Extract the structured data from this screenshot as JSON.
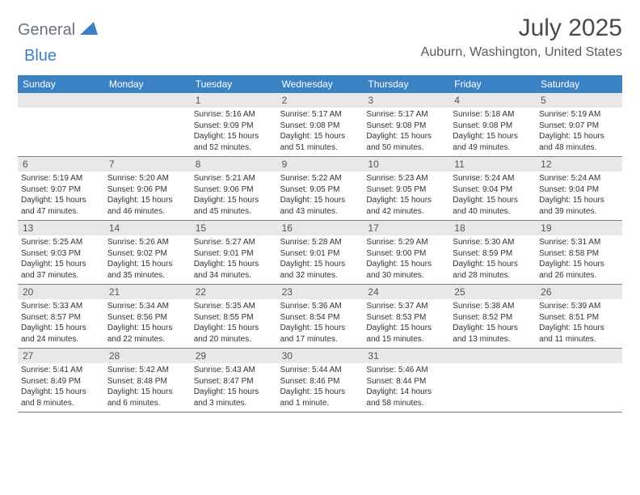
{
  "brand": {
    "part1": "General",
    "part2": "Blue"
  },
  "title": "July 2025",
  "location": "Auburn, Washington, United States",
  "colors": {
    "header_bg": "#3b82c4",
    "header_text": "#ffffff",
    "daynum_bg": "#e8e8e8",
    "border": "#808080",
    "text": "#333333"
  },
  "day_names": [
    "Sunday",
    "Monday",
    "Tuesday",
    "Wednesday",
    "Thursday",
    "Friday",
    "Saturday"
  ],
  "weeks": [
    [
      {
        "n": "",
        "sr": "",
        "ss": "",
        "dl": ""
      },
      {
        "n": "",
        "sr": "",
        "ss": "",
        "dl": ""
      },
      {
        "n": "1",
        "sr": "Sunrise: 5:16 AM",
        "ss": "Sunset: 9:09 PM",
        "dl": "Daylight: 15 hours and 52 minutes."
      },
      {
        "n": "2",
        "sr": "Sunrise: 5:17 AM",
        "ss": "Sunset: 9:08 PM",
        "dl": "Daylight: 15 hours and 51 minutes."
      },
      {
        "n": "3",
        "sr": "Sunrise: 5:17 AM",
        "ss": "Sunset: 9:08 PM",
        "dl": "Daylight: 15 hours and 50 minutes."
      },
      {
        "n": "4",
        "sr": "Sunrise: 5:18 AM",
        "ss": "Sunset: 9:08 PM",
        "dl": "Daylight: 15 hours and 49 minutes."
      },
      {
        "n": "5",
        "sr": "Sunrise: 5:19 AM",
        "ss": "Sunset: 9:07 PM",
        "dl": "Daylight: 15 hours and 48 minutes."
      }
    ],
    [
      {
        "n": "6",
        "sr": "Sunrise: 5:19 AM",
        "ss": "Sunset: 9:07 PM",
        "dl": "Daylight: 15 hours and 47 minutes."
      },
      {
        "n": "7",
        "sr": "Sunrise: 5:20 AM",
        "ss": "Sunset: 9:06 PM",
        "dl": "Daylight: 15 hours and 46 minutes."
      },
      {
        "n": "8",
        "sr": "Sunrise: 5:21 AM",
        "ss": "Sunset: 9:06 PM",
        "dl": "Daylight: 15 hours and 45 minutes."
      },
      {
        "n": "9",
        "sr": "Sunrise: 5:22 AM",
        "ss": "Sunset: 9:05 PM",
        "dl": "Daylight: 15 hours and 43 minutes."
      },
      {
        "n": "10",
        "sr": "Sunrise: 5:23 AM",
        "ss": "Sunset: 9:05 PM",
        "dl": "Daylight: 15 hours and 42 minutes."
      },
      {
        "n": "11",
        "sr": "Sunrise: 5:24 AM",
        "ss": "Sunset: 9:04 PM",
        "dl": "Daylight: 15 hours and 40 minutes."
      },
      {
        "n": "12",
        "sr": "Sunrise: 5:24 AM",
        "ss": "Sunset: 9:04 PM",
        "dl": "Daylight: 15 hours and 39 minutes."
      }
    ],
    [
      {
        "n": "13",
        "sr": "Sunrise: 5:25 AM",
        "ss": "Sunset: 9:03 PM",
        "dl": "Daylight: 15 hours and 37 minutes."
      },
      {
        "n": "14",
        "sr": "Sunrise: 5:26 AM",
        "ss": "Sunset: 9:02 PM",
        "dl": "Daylight: 15 hours and 35 minutes."
      },
      {
        "n": "15",
        "sr": "Sunrise: 5:27 AM",
        "ss": "Sunset: 9:01 PM",
        "dl": "Daylight: 15 hours and 34 minutes."
      },
      {
        "n": "16",
        "sr": "Sunrise: 5:28 AM",
        "ss": "Sunset: 9:01 PM",
        "dl": "Daylight: 15 hours and 32 minutes."
      },
      {
        "n": "17",
        "sr": "Sunrise: 5:29 AM",
        "ss": "Sunset: 9:00 PM",
        "dl": "Daylight: 15 hours and 30 minutes."
      },
      {
        "n": "18",
        "sr": "Sunrise: 5:30 AM",
        "ss": "Sunset: 8:59 PM",
        "dl": "Daylight: 15 hours and 28 minutes."
      },
      {
        "n": "19",
        "sr": "Sunrise: 5:31 AM",
        "ss": "Sunset: 8:58 PM",
        "dl": "Daylight: 15 hours and 26 minutes."
      }
    ],
    [
      {
        "n": "20",
        "sr": "Sunrise: 5:33 AM",
        "ss": "Sunset: 8:57 PM",
        "dl": "Daylight: 15 hours and 24 minutes."
      },
      {
        "n": "21",
        "sr": "Sunrise: 5:34 AM",
        "ss": "Sunset: 8:56 PM",
        "dl": "Daylight: 15 hours and 22 minutes."
      },
      {
        "n": "22",
        "sr": "Sunrise: 5:35 AM",
        "ss": "Sunset: 8:55 PM",
        "dl": "Daylight: 15 hours and 20 minutes."
      },
      {
        "n": "23",
        "sr": "Sunrise: 5:36 AM",
        "ss": "Sunset: 8:54 PM",
        "dl": "Daylight: 15 hours and 17 minutes."
      },
      {
        "n": "24",
        "sr": "Sunrise: 5:37 AM",
        "ss": "Sunset: 8:53 PM",
        "dl": "Daylight: 15 hours and 15 minutes."
      },
      {
        "n": "25",
        "sr": "Sunrise: 5:38 AM",
        "ss": "Sunset: 8:52 PM",
        "dl": "Daylight: 15 hours and 13 minutes."
      },
      {
        "n": "26",
        "sr": "Sunrise: 5:39 AM",
        "ss": "Sunset: 8:51 PM",
        "dl": "Daylight: 15 hours and 11 minutes."
      }
    ],
    [
      {
        "n": "27",
        "sr": "Sunrise: 5:41 AM",
        "ss": "Sunset: 8:49 PM",
        "dl": "Daylight: 15 hours and 8 minutes."
      },
      {
        "n": "28",
        "sr": "Sunrise: 5:42 AM",
        "ss": "Sunset: 8:48 PM",
        "dl": "Daylight: 15 hours and 6 minutes."
      },
      {
        "n": "29",
        "sr": "Sunrise: 5:43 AM",
        "ss": "Sunset: 8:47 PM",
        "dl": "Daylight: 15 hours and 3 minutes."
      },
      {
        "n": "30",
        "sr": "Sunrise: 5:44 AM",
        "ss": "Sunset: 8:46 PM",
        "dl": "Daylight: 15 hours and 1 minute."
      },
      {
        "n": "31",
        "sr": "Sunrise: 5:46 AM",
        "ss": "Sunset: 8:44 PM",
        "dl": "Daylight: 14 hours and 58 minutes."
      },
      {
        "n": "",
        "sr": "",
        "ss": "",
        "dl": ""
      },
      {
        "n": "",
        "sr": "",
        "ss": "",
        "dl": ""
      }
    ]
  ]
}
